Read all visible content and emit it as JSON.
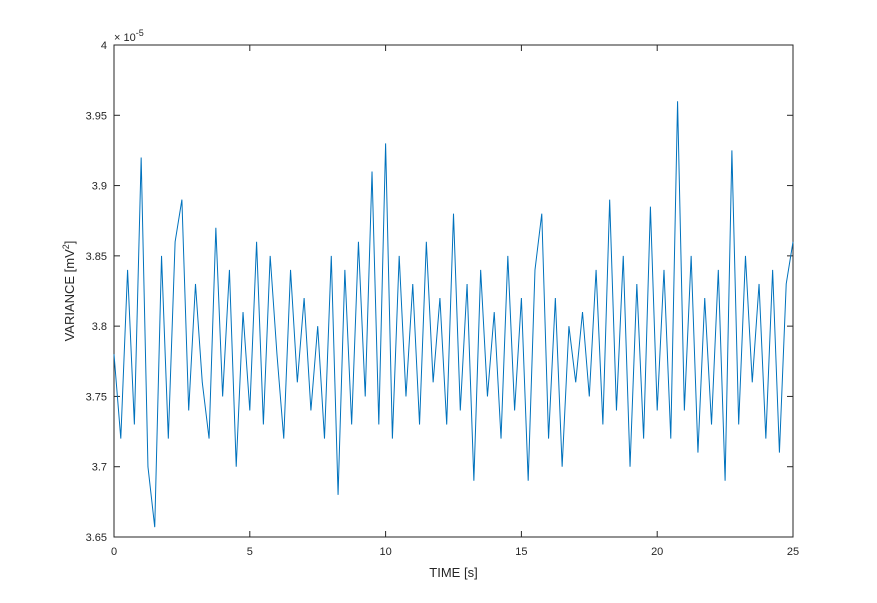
{
  "chart_data": {
    "type": "line",
    "xlabel": "TIME [s]",
    "ylabel": [
      "VARIANCE [mV",
      "2",
      "]"
    ],
    "yexponent": [
      "× 10",
      "-5"
    ],
    "xlim": [
      0,
      25
    ],
    "xticks": [
      0,
      5,
      10,
      15,
      20,
      25
    ],
    "ylim": [
      3.65,
      4
    ],
    "yticks": [
      3.65,
      3.7,
      3.75,
      3.8,
      3.85,
      3.9,
      3.95,
      4
    ],
    "grid": false,
    "series": [
      {
        "color": "#0072bd",
        "x": [
          0,
          0.25,
          0.5,
          0.75,
          1,
          1.25,
          1.5,
          1.75,
          2,
          2.25,
          2.5,
          2.75,
          3,
          3.25,
          3.5,
          3.75,
          4,
          4.25,
          4.5,
          4.75,
          5,
          5.25,
          5.5,
          5.75,
          6,
          6.25,
          6.5,
          6.75,
          7,
          7.25,
          7.5,
          7.75,
          8,
          8.25,
          8.5,
          8.75,
          9,
          9.25,
          9.5,
          9.75,
          10,
          10.25,
          10.5,
          10.75,
          11,
          11.25,
          11.5,
          11.75,
          12,
          12.25,
          12.5,
          12.75,
          13,
          13.25,
          13.5,
          13.75,
          14,
          14.25,
          14.5,
          14.75,
          15,
          15.25,
          15.5,
          15.75,
          16,
          16.25,
          16.5,
          16.75,
          17,
          17.25,
          17.5,
          17.75,
          18,
          18.25,
          18.5,
          18.75,
          19,
          19.25,
          19.5,
          19.75,
          20,
          20.25,
          20.5,
          20.75,
          21,
          21.25,
          21.5,
          21.75,
          22,
          22.25,
          22.5,
          22.75,
          23,
          23.25,
          23.5,
          23.75,
          24,
          24.25,
          24.5,
          24.75,
          25
        ],
        "values": [
          3.78,
          3.72,
          3.84,
          3.73,
          3.92,
          3.7,
          3.657,
          3.85,
          3.72,
          3.86,
          3.89,
          3.74,
          3.83,
          3.76,
          3.72,
          3.87,
          3.75,
          3.84,
          3.7,
          3.81,
          3.74,
          3.86,
          3.73,
          3.85,
          3.78,
          3.72,
          3.84,
          3.76,
          3.82,
          3.74,
          3.8,
          3.72,
          3.85,
          3.68,
          3.84,
          3.73,
          3.86,
          3.75,
          3.91,
          3.73,
          3.93,
          3.72,
          3.85,
          3.75,
          3.83,
          3.73,
          3.86,
          3.76,
          3.82,
          3.73,
          3.88,
          3.74,
          3.83,
          3.69,
          3.84,
          3.75,
          3.81,
          3.72,
          3.85,
          3.74,
          3.82,
          3.69,
          3.84,
          3.88,
          3.72,
          3.82,
          3.7,
          3.8,
          3.76,
          3.81,
          3.75,
          3.84,
          3.73,
          3.89,
          3.74,
          3.85,
          3.7,
          3.83,
          3.72,
          3.885,
          3.74,
          3.84,
          3.72,
          3.96,
          3.74,
          3.85,
          3.71,
          3.82,
          3.73,
          3.84,
          3.69,
          3.925,
          3.73,
          3.85,
          3.76,
          3.83,
          3.72,
          3.84,
          3.71,
          3.83,
          3.86
        ]
      }
    ]
  }
}
